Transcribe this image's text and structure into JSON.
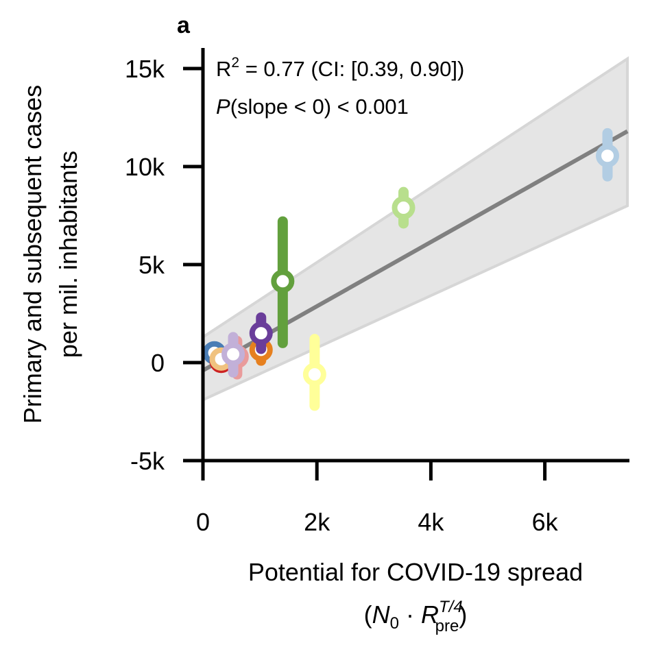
{
  "chart_data": {
    "type": "scatter",
    "panel_label": "a",
    "title": "",
    "xlabel_line1": "Potential for COVID-19 spread",
    "xlabel_line2": {
      "open": "(",
      "N": "N",
      "N_sub": "0",
      "dot": " · ",
      "R": "R",
      "R_sup": "T/4",
      "R_sub": "pre",
      "close": ")"
    },
    "ylabel_line1": "Primary and subsequent cases",
    "ylabel_line2": "per mil. inhabitants",
    "xlim": [
      0,
      7500
    ],
    "ylim": [
      -5000,
      16000
    ],
    "xticks": [
      {
        "value": 0,
        "label": "0"
      },
      {
        "value": 2000,
        "label": "2k"
      },
      {
        "value": 4000,
        "label": "4k"
      },
      {
        "value": 6000,
        "label": "6k"
      }
    ],
    "yticks": [
      {
        "value": -5000,
        "label": "-5k"
      },
      {
        "value": 0,
        "label": "0"
      },
      {
        "value": 5000,
        "label": "5k"
      },
      {
        "value": 10000,
        "label": "10k"
      },
      {
        "value": 15000,
        "label": "15k"
      }
    ],
    "grid": false,
    "annotations": {
      "r2_prefix": "R",
      "r2_sup": "2",
      "r2_rest": " = 0.77 (CI: [0.39, 0.90])",
      "p_italic": "P",
      "p_rest": "(slope < 0) < 0.001"
    },
    "regression": {
      "x": [
        0,
        7450
      ],
      "y": [
        -400,
        11800
      ],
      "ci_lower": [
        -1900,
        8000
      ],
      "ci_upper": [
        1300,
        15500
      ],
      "line_color": "#808080",
      "band_color": "#e5e5e5",
      "band_edge_color": "#d6d6d6"
    },
    "points": [
      {
        "name": "dark-blue",
        "x": 200,
        "y": 500,
        "err_low": 500,
        "err_high": 500,
        "color": "#4a7db5"
      },
      {
        "name": "red",
        "x": 320,
        "y": 60,
        "err_low": 60,
        "err_high": 60,
        "color": "#cc2222"
      },
      {
        "name": "light-orange",
        "x": 320,
        "y": 180,
        "err_low": 180,
        "err_high": 180,
        "color": "#f0c27f"
      },
      {
        "name": "pink",
        "x": 600,
        "y": 300,
        "err_low": -600,
        "err_high": 1100,
        "color": "#e99b9b"
      },
      {
        "name": "lavender",
        "x": 530,
        "y": 430,
        "err_low": -500,
        "err_high": 1300,
        "color": "#c2b0d8"
      },
      {
        "name": "orange",
        "x": 1020,
        "y": 650,
        "err_low": 100,
        "err_high": 1200,
        "color": "#e6801f"
      },
      {
        "name": "purple",
        "x": 1020,
        "y": 1500,
        "err_low": 700,
        "err_high": 2300,
        "color": "#6a3d9a"
      },
      {
        "name": "green",
        "x": 1400,
        "y": 4150,
        "err_low": 1000,
        "err_high": 7200,
        "color": "#62a03d"
      },
      {
        "name": "yellow",
        "x": 1960,
        "y": -600,
        "err_low": -2200,
        "err_high": 1200,
        "color": "#ffff99"
      },
      {
        "name": "light-green",
        "x": 3520,
        "y": 7900,
        "err_low": 7100,
        "err_high": 8700,
        "color": "#b8df8d"
      },
      {
        "name": "light-blue",
        "x": 7100,
        "y": 10550,
        "err_low": 9500,
        "err_high": 11700,
        "color": "#b2cde3"
      }
    ]
  }
}
